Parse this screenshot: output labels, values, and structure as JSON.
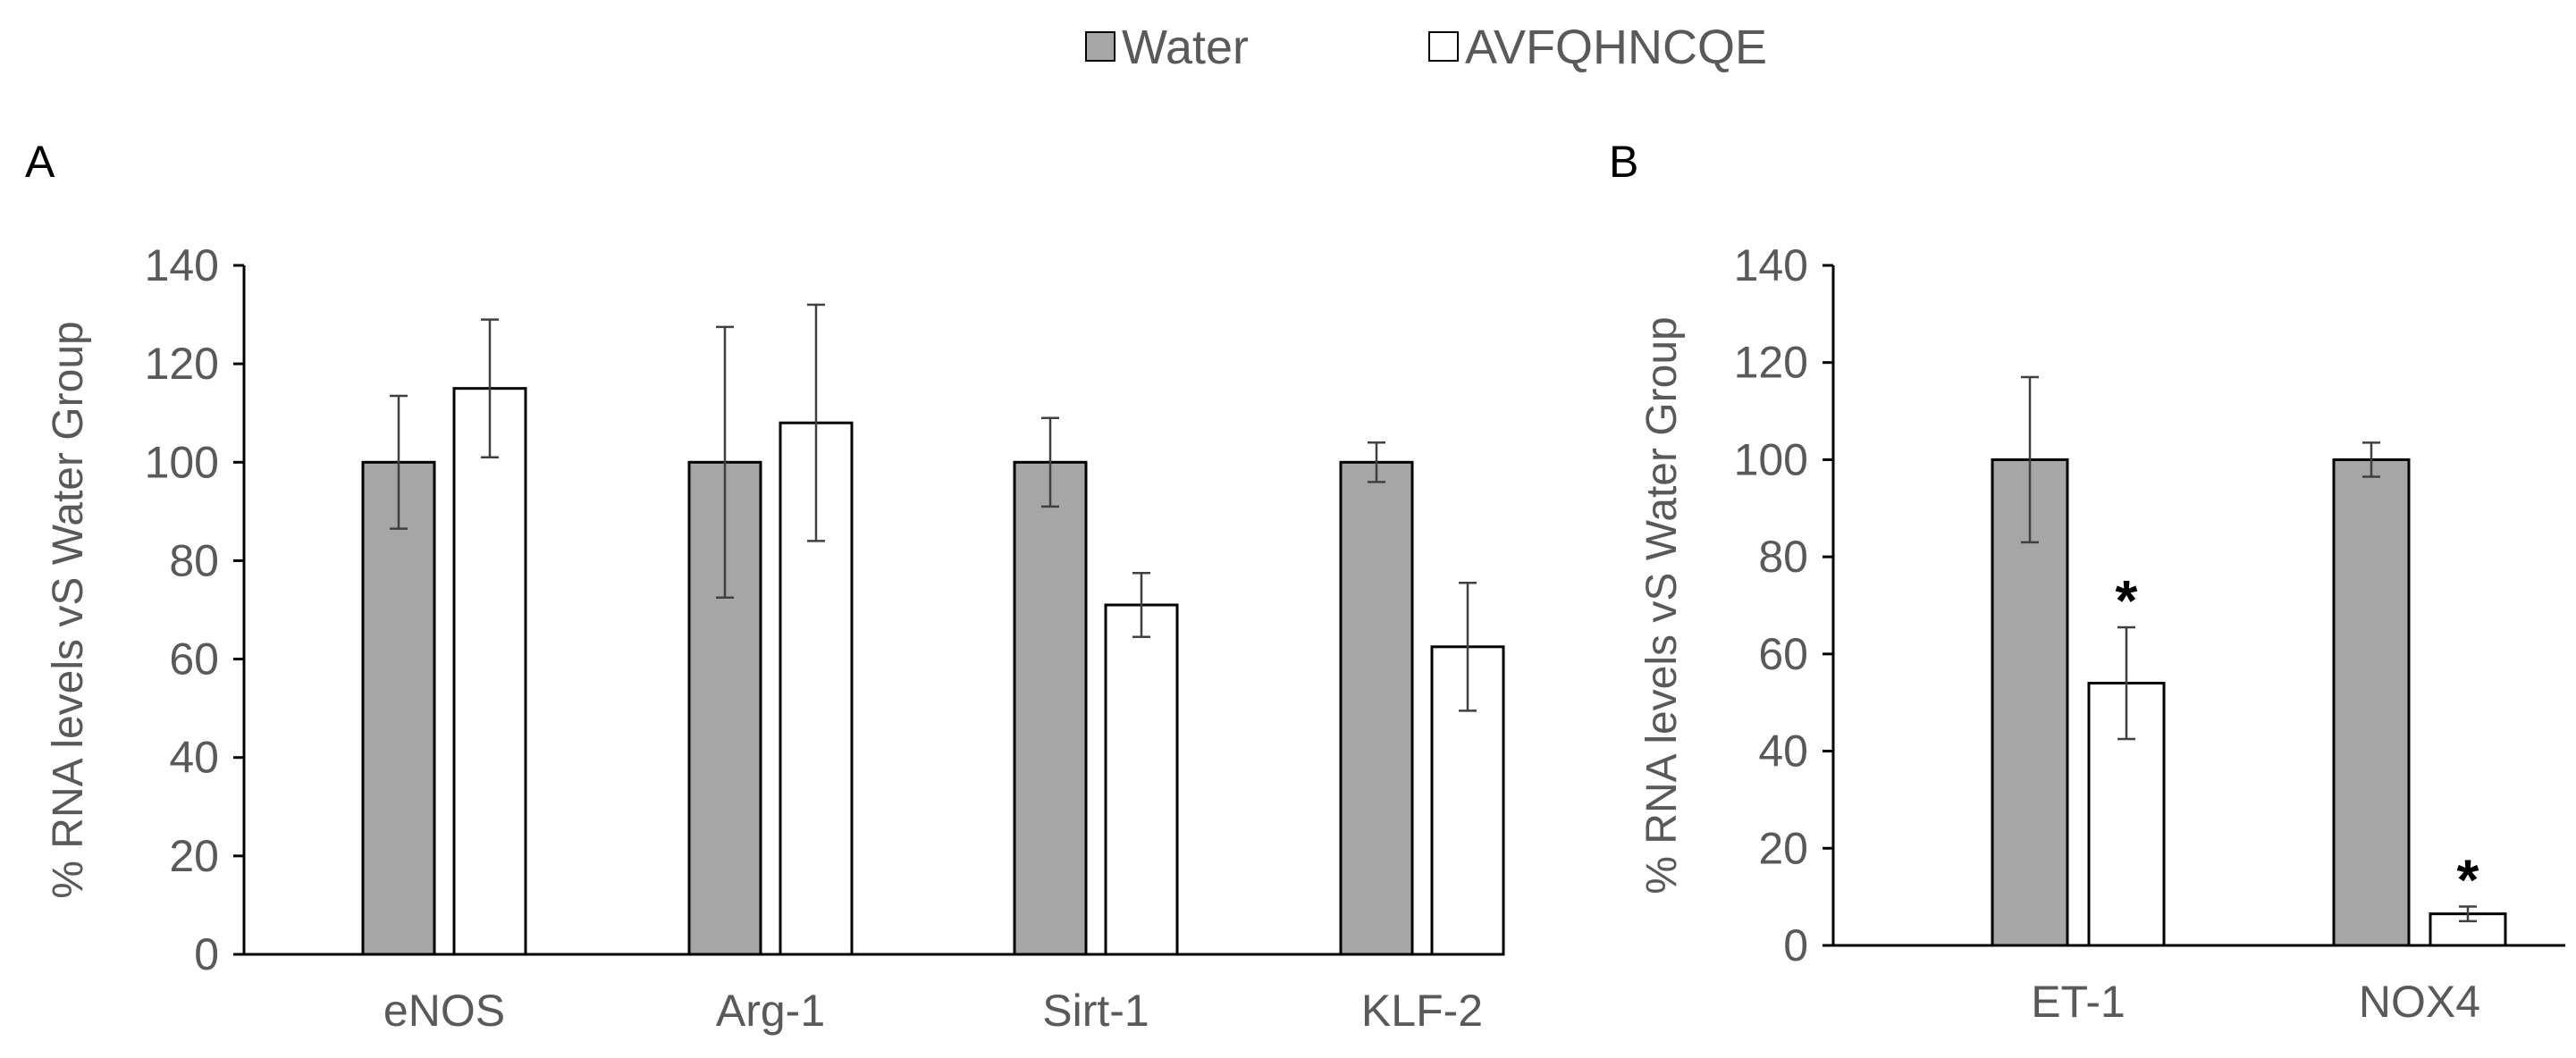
{
  "legend": {
    "items": [
      {
        "name": "Water",
        "color": "#a6a6a6"
      },
      {
        "name": "AVFQHNCQE",
        "color": "#ffffff"
      }
    ]
  },
  "chart_data": [
    {
      "type": "bar",
      "panel_label": "A",
      "categories": [
        "eNOS",
        "Arg-1",
        "Sirt-1",
        "KLF-2"
      ],
      "series": [
        {
          "name": "Water",
          "color": "#a6a6a6",
          "values": [
            100,
            100,
            100,
            100
          ],
          "errors": [
            13.5,
            27.5,
            9,
            4
          ]
        },
        {
          "name": "AVFQHNCQE",
          "color": "#ffffff",
          "values": [
            115,
            108,
            71,
            62.5
          ],
          "errors": [
            14,
            24,
            6.5,
            13
          ]
        }
      ],
      "significance": [
        "",
        "",
        "",
        ""
      ],
      "ylabel": "% RNA levels vS Water Group",
      "ylim": [
        0,
        140
      ],
      "yticks": [
        "0",
        "20",
        "40",
        "60",
        "80",
        "100",
        "120",
        "140"
      ]
    },
    {
      "type": "bar",
      "panel_label": "B",
      "categories": [
        "ET-1",
        "NOX4"
      ],
      "series": [
        {
          "name": "Water",
          "color": "#a6a6a6",
          "values": [
            100,
            100
          ],
          "errors": [
            17,
            3.5
          ]
        },
        {
          "name": "AVFQHNCQE",
          "color": "#ffffff",
          "values": [
            54,
            6.5
          ],
          "errors": [
            11.5,
            1.5
          ]
        }
      ],
      "significance": [
        "*",
        "*"
      ],
      "ylabel": "% RNA levels vS Water Group",
      "ylim": [
        0,
        140
      ],
      "yticks": [
        "0",
        "20",
        "40",
        "60",
        "80",
        "100",
        "120",
        "140"
      ]
    }
  ]
}
